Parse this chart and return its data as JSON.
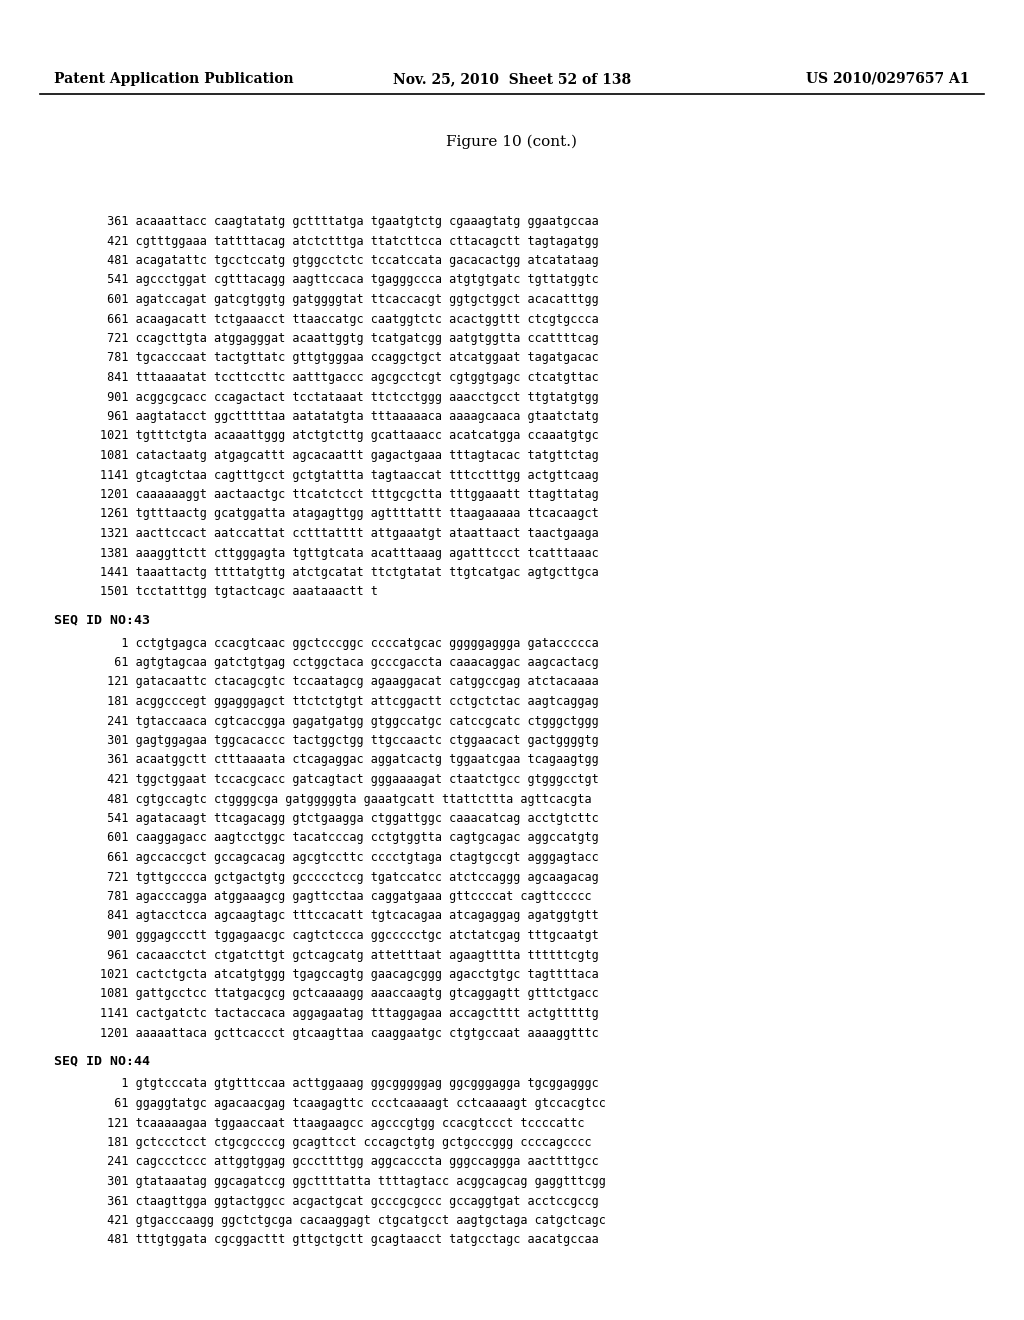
{
  "header_left": "Patent Application Publication",
  "header_mid": "Nov. 25, 2010  Sheet 52 of 138",
  "header_right": "US 2010/0297657 A1",
  "figure_title": "Figure 10 (cont.)",
  "background_color": "#ffffff",
  "text_color": "#000000",
  "sequences": [
    {
      "num": " 361",
      "line": " 361 acaaattacc caagtatatg gcttttatga tgaatgtctg cgaaagtatg ggaatgccaa"
    },
    {
      "num": " 421",
      "line": " 421 cgtttggaaa tattttacag atctctttga ttatcttcca cttacagctt tagtagatgg"
    },
    {
      "num": " 481",
      "line": " 481 acagatattc tgcctccatg gtggcctctc tccatccata gacacactgg atcatataag"
    },
    {
      "num": " 541",
      "line": " 541 agccctggat cgtttacagg aagttccaca tgagggccca atgtgtgatc tgttatggtc"
    },
    {
      "num": " 601",
      "line": " 601 agatccagat gatcgtggtg gatggggtat ttcaccacgt ggtgctggct acacatttgg"
    },
    {
      "num": " 661",
      "line": " 661 acaagacatt tctgaaacct ttaaccatgc caatggtctc acactggttt ctcgtgccca"
    },
    {
      "num": " 721",
      "line": " 721 ccagcttgta atggagggat acaattggtg tcatgatcgg aatgtggtta ccattttcag"
    },
    {
      "num": " 781",
      "line": " 781 tgcacccaat tactgttatc gttgtgggaa ccaggctgct atcatggaat tagatgacac"
    },
    {
      "num": " 841",
      "line": " 841 tttaaaatat tccttccttc aatttgaccc agcgcctcgt cgtggtgagc ctcatgttac"
    },
    {
      "num": " 901",
      "line": " 901 acggcgcacc ccagactact tcctataaat ttctcctggg aaacctgcct ttgtatgtgg"
    },
    {
      "num": " 961",
      "line": " 961 aagtatacct ggctttttaa aatatatgta tttaaaaaca aaaagcaaca gtaatctatg"
    },
    {
      "num": "1021",
      "line": "1021 tgtttctgta acaaattggg atctgtcttg gcattaaacc acatcatgga ccaaatgtgc"
    },
    {
      "num": "1081",
      "line": "1081 catactaatg atgagcattt agcacaattt gagactgaaa tttagtacac tatgttctag"
    },
    {
      "num": "1141",
      "line": "1141 gtcagtctaa cagtttgcct gctgtattta tagtaaccat tttcctttgg actgttcaag"
    },
    {
      "num": "1201",
      "line": "1201 caaaaaaggt aactaactgc ttcatctcct tttgcgctta tttggaaatt ttagttatag"
    },
    {
      "num": "1261",
      "line": "1261 tgtttaactg gcatggatta atagagttgg agttttattt ttaagaaaaa ttcacaagct"
    },
    {
      "num": "1321",
      "line": "1321 aacttccact aatccattat cctttatttt attgaaatgt ataattaact taactgaaga"
    },
    {
      "num": "1381",
      "line": "1381 aaaggttctt cttgggagta tgttgtcata acatttaaag agatttccct tcatttaaac"
    },
    {
      "num": "1441",
      "line": "1441 taaattactg ttttatgttg atctgcatat ttctgtatat ttgtcatgac agtgcttgca"
    },
    {
      "num": "1501",
      "line": "1501 tcctatttgg tgtactcagc aaataaactt t"
    }
  ],
  "seq43_header": "SEQ ID NO:43",
  "seq43": [
    {
      "line": "   1 cctgtgagca ccacgtcaac ggctcccggc ccccatgcac gggggaggga gataccccca"
    },
    {
      "line": "  61 agtgtagcaa gatctgtgag cctggctaca gcccgaccta caaacaggac aagcactacg"
    },
    {
      "line": " 121 gatacaattc ctacagcgtc tccaatagcg agaaggacat catggccgag atctacaaaa"
    },
    {
      "line": " 181 acggcccegt ggagggagct ttctctgtgt attcggactt cctgctctac aagtcaggag"
    },
    {
      "line": " 241 tgtaccaaca cgtcaccgga gagatgatgg gtggccatgc catccgcatc ctgggctggg"
    },
    {
      "line": " 301 gagtggagaa tggcacaccc tactggctgg ttgccaactc ctggaacact gactggggtg"
    },
    {
      "line": " 361 acaatggctt ctttaaaata ctcagaggac aggatcactg tggaatcgaa tcagaagtgg"
    },
    {
      "line": " 421 tggctggaat tccacgcacc gatcagtact gggaaaagat ctaatctgcc gtgggcctgt"
    },
    {
      "line": " 481 cgtgccagtc ctggggcga gatgggggta gaaatgcatt ttattcttta agttcacgta"
    },
    {
      "line": " 541 agatacaagt ttcagacagg gtctgaagga ctggattggc caaacatcag acctgtcttc"
    },
    {
      "line": " 601 caaggagacc aagtcctggc tacatcccag cctgtggtta cagtgcagac aggccatgtg"
    },
    {
      "line": " 661 agccaccgct gccagcacag agcgtccttc cccctgtaga ctagtgccgt agggagtacc"
    },
    {
      "line": " 721 tgttgcccca gctgactgtg gccccctccg tgatccatcc atctccaggg agcaagacag"
    },
    {
      "line": " 781 agacccagga atggaaagcg gagttcctaa caggatgaaa gttccccat cagttccccc"
    },
    {
      "line": " 841 agtacctcca agcaagtagc tttccacatt tgtcacagaa atcagaggag agatggtgtt"
    },
    {
      "line": " 901 gggagccctt tggagaacgc cagtctccca ggccccctgc atctatcgag tttgcaatgt"
    },
    {
      "line": " 961 cacaacctct ctgatcttgt gctcagcatg attetttaat agaagtttta ttttttcgtg"
    },
    {
      "line": "1021 cactctgcta atcatgtggg tgagccagtg gaacagcggg agacctgtgc tagttttaca"
    },
    {
      "line": "1081 gattgcctcc ttatgacgcg gctcaaaagg aaaccaagtg gtcaggagtt gtttctgacc"
    },
    {
      "line": "1141 cactgatctc tactaccaca aggagaatag tttaggagaa accagctttt actgtttttg"
    },
    {
      "line": "1201 aaaaattaca gcttcaccct gtcaagttaa caaggaatgc ctgtgccaat aaaaggtttc"
    }
  ],
  "seq44_header": "SEQ ID NO:44",
  "seq44": [
    {
      "line": "   1 gtgtcccata gtgtttccaa acttggaaag ggcgggggag ggcgggagga tgcggagggc"
    },
    {
      "line": "  61 ggaggtatgc agacaacgag tcaagagttc ccctcaaaagt cctcaaaagt gtccacgtcc"
    },
    {
      "line": " 121 tcaaaaagaa tggaaccaat ttaagaagcc agcccgtgg ccacgtccct tccccattc"
    },
    {
      "line": " 181 gctccctcct ctgcgccccg gcagttcct cccagctgtg gctgcccggg ccccagcccc"
    },
    {
      "line": " 241 cagccctccc attggtggag gcccttttgg aggcacccta gggccaggga aacttttgcc"
    },
    {
      "line": " 301 gtataaatag ggcagatccg ggcttttatta ttttagtacc acggcagcag gaggtttcgg"
    },
    {
      "line": " 361 ctaagttgga ggtactggcc acgactgcat gcccgcgccc gccaggtgat acctccgccg"
    },
    {
      "line": " 421 gtgacccaagg ggctctgcga cacaaggagt ctgcatgcct aagtgctaga catgctcagc"
    },
    {
      "line": " 481 tttgtggata cgcggacttt gttgctgctt gcagtaacct tatgcctagc aacatgccaa"
    }
  ]
}
